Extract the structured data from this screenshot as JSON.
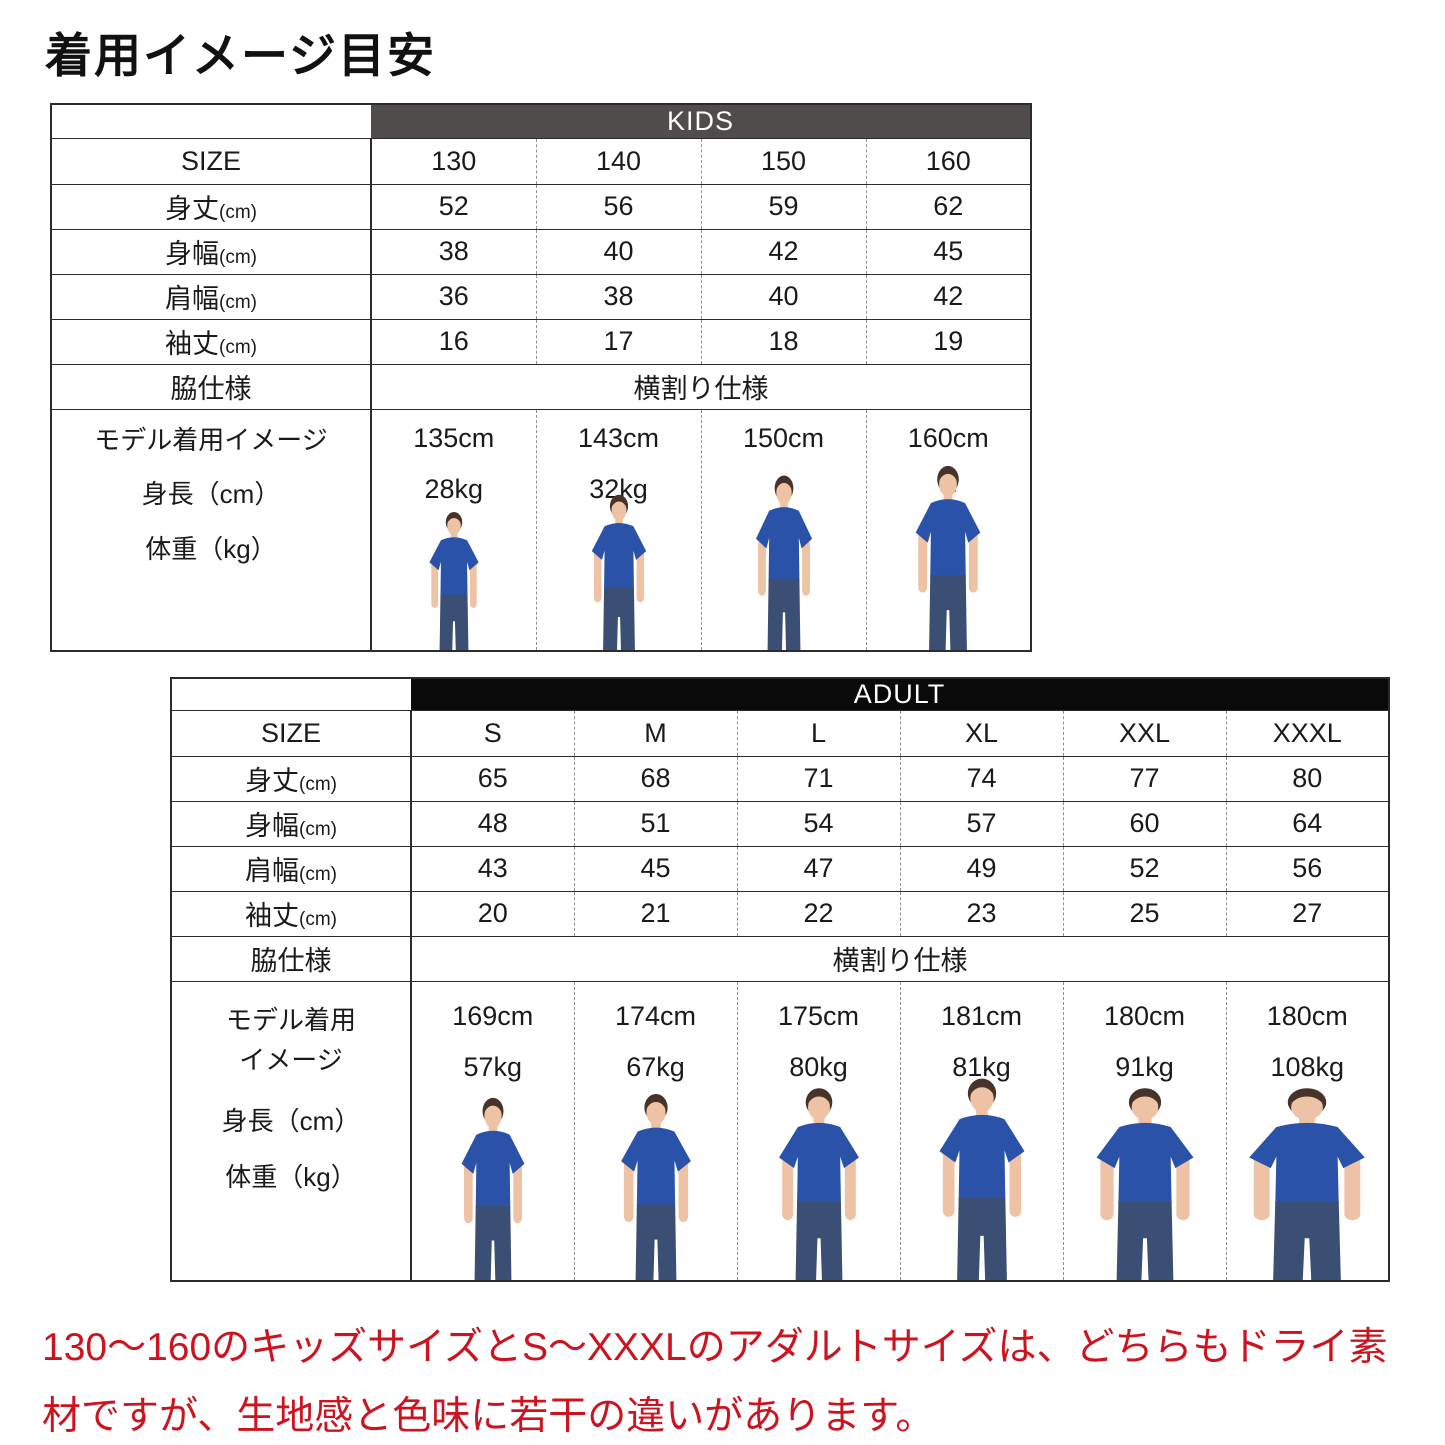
{
  "page_title": "着用イメージ目安",
  "kids_table": {
    "group_label": "KIDS",
    "size_label": "SIZE",
    "sizes": [
      "130",
      "140",
      "150",
      "160"
    ],
    "rows": [
      {
        "label": "身丈",
        "unit": "(cm)",
        "values": [
          "52",
          "56",
          "59",
          "62"
        ]
      },
      {
        "label": "身幅",
        "unit": "(cm)",
        "values": [
          "38",
          "40",
          "42",
          "45"
        ]
      },
      {
        "label": "肩幅",
        "unit": "(cm)",
        "values": [
          "36",
          "38",
          "40",
          "42"
        ]
      },
      {
        "label": "袖丈",
        "unit": "(cm)",
        "values": [
          "16",
          "17",
          "18",
          "19"
        ]
      }
    ],
    "side_seam_label": "脇仕様",
    "side_seam_value": "横割り仕様",
    "model_label_lines": [
      "モデル着用イメージ",
      "身長（cm）",
      "体重（kg）"
    ],
    "models": [
      {
        "height": "135cm",
        "weight": "28kg"
      },
      {
        "height": "143cm",
        "weight": "32kg"
      },
      {
        "height": "150cm",
        "weight": "–"
      },
      {
        "height": "160cm",
        "weight": "–"
      }
    ]
  },
  "adult_table": {
    "group_label": "ADULT",
    "size_label": "SIZE",
    "sizes": [
      "S",
      "M",
      "L",
      "XL",
      "XXL",
      "XXXL"
    ],
    "rows": [
      {
        "label": "身丈",
        "unit": "(cm)",
        "values": [
          "65",
          "68",
          "71",
          "74",
          "77",
          "80"
        ]
      },
      {
        "label": "身幅",
        "unit": "(cm)",
        "values": [
          "48",
          "51",
          "54",
          "57",
          "60",
          "64"
        ]
      },
      {
        "label": "肩幅",
        "unit": "(cm)",
        "values": [
          "43",
          "45",
          "47",
          "49",
          "52",
          "56"
        ]
      },
      {
        "label": "袖丈",
        "unit": "(cm)",
        "values": [
          "20",
          "21",
          "22",
          "23",
          "25",
          "27"
        ]
      }
    ],
    "side_seam_label": "脇仕様",
    "side_seam_value": "横割り仕様",
    "model_label_lines": [
      "モデル着用",
      "イメージ",
      "身長（cm）",
      "体重（kg）"
    ],
    "models": [
      {
        "height": "169cm",
        "weight": "57kg"
      },
      {
        "height": "174cm",
        "weight": "67kg"
      },
      {
        "height": "175cm",
        "weight": "80kg"
      },
      {
        "height": "181cm",
        "weight": "81kg"
      },
      {
        "height": "180cm",
        "weight": "91kg"
      },
      {
        "height": "180cm",
        "weight": "108kg"
      }
    ]
  },
  "footnote": "130〜160のキッズサイズとS〜XXXLのアダルトサイズは、どちらもドライ素材ですが、生地感と色味に若干の違いがあります。",
  "colors": {
    "kids_band_bg": "#4f4c4b",
    "adult_band_bg": "#0a0a0a",
    "band_text": "#ffffff",
    "footnote_red": "#cc1420",
    "shirt_blue": "#2a52a8",
    "jeans_blue": "#3a4f73",
    "skin": "#eec2a4",
    "hair": "#47332a"
  }
}
